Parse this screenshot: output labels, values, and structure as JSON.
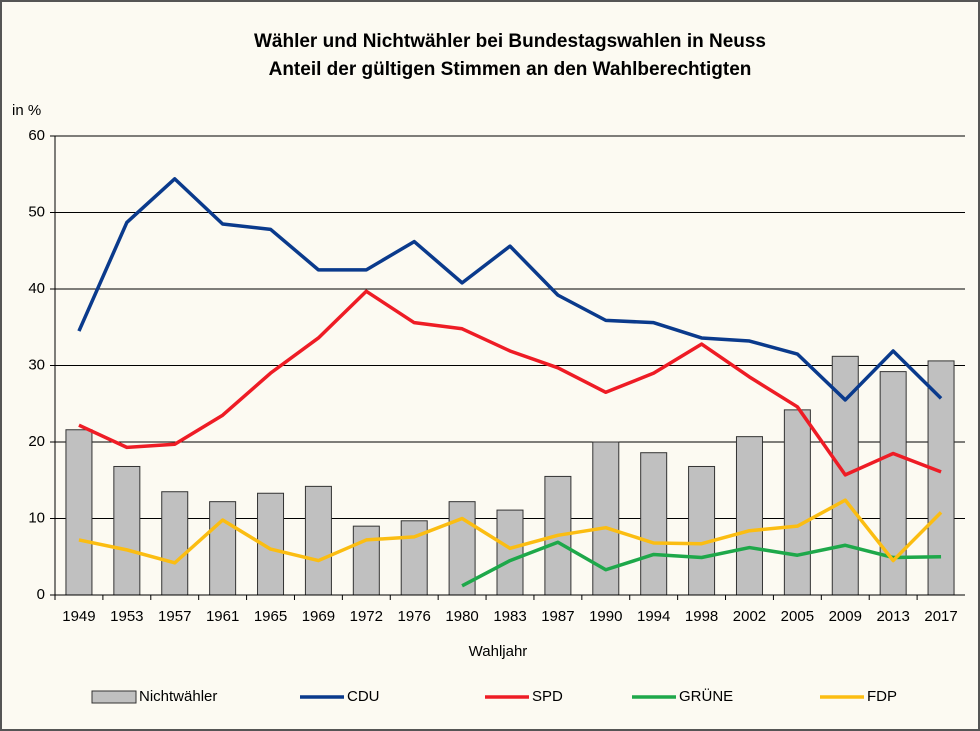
{
  "chart_data": {
    "type": "combo",
    "title": "Wähler und Nichtwähler bei Bundestagswahlen in Neuss",
    "subtitle": "Anteil der gültigen Stimmen an den Wahlberechtigten",
    "y_label": "in %",
    "x_label": "Wahljahr",
    "categories": [
      "1949",
      "1953",
      "1957",
      "1961",
      "1965",
      "1969",
      "1972",
      "1976",
      "1980",
      "1983",
      "1987",
      "1990",
      "1994",
      "1998",
      "2002",
      "2005",
      "2009",
      "2013",
      "2017"
    ],
    "ylim": [
      0,
      60
    ],
    "yticks": [
      0,
      10,
      20,
      30,
      40,
      50,
      60
    ],
    "grid": true,
    "series": [
      {
        "name": "Nichtwähler",
        "type": "bar",
        "color": "#c0c0c0",
        "values": [
          21.6,
          16.8,
          13.5,
          12.2,
          13.3,
          14.2,
          9.0,
          9.7,
          12.2,
          11.1,
          15.5,
          20.0,
          18.6,
          16.8,
          20.7,
          24.2,
          31.2,
          29.2,
          30.6
        ]
      },
      {
        "name": "CDU",
        "type": "line",
        "color": "#0a3a8c",
        "values": [
          34.5,
          48.7,
          54.4,
          48.5,
          47.8,
          42.5,
          42.5,
          46.2,
          40.8,
          45.6,
          39.2,
          35.9,
          35.6,
          33.6,
          33.2,
          31.5,
          25.5,
          31.9,
          25.7
        ]
      },
      {
        "name": "SPD",
        "type": "line",
        "color": "#ee1c25",
        "values": [
          22.2,
          19.3,
          19.7,
          23.5,
          29.0,
          33.6,
          39.7,
          35.6,
          34.8,
          31.9,
          29.7,
          26.5,
          29.0,
          32.8,
          28.5,
          24.6,
          15.7,
          18.5,
          16.1
        ]
      },
      {
        "name": "GRÜNE",
        "type": "line",
        "color": "#1ea84a",
        "values": [
          null,
          null,
          null,
          null,
          null,
          null,
          null,
          null,
          1.2,
          4.5,
          6.9,
          3.3,
          5.3,
          4.9,
          6.2,
          5.2,
          6.5,
          4.9,
          5.0
        ]
      },
      {
        "name": "FDP",
        "type": "line",
        "color": "#fbbd12",
        "values": [
          7.2,
          5.9,
          4.2,
          9.8,
          6.0,
          4.5,
          7.2,
          7.6,
          10.0,
          6.1,
          7.8,
          8.8,
          6.8,
          6.7,
          8.4,
          9.0,
          12.4,
          4.5,
          10.8
        ]
      }
    ]
  }
}
